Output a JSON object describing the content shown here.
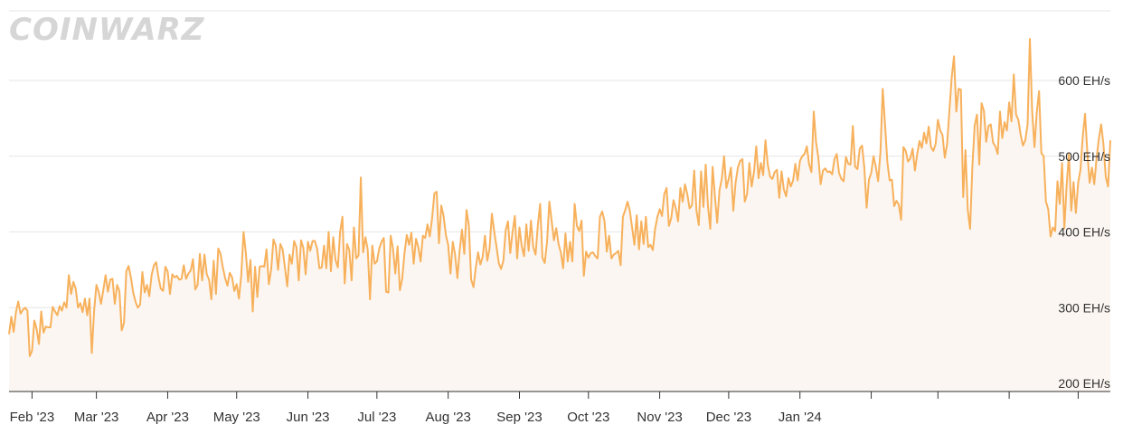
{
  "watermark": "COINWARZ",
  "chart_data": {
    "type": "area",
    "x_labels": [
      "Feb '23",
      "Mar '23",
      "Apr '23",
      "May '23",
      "Jun '23",
      "Jul '23",
      "Aug '23",
      "Sep '23",
      "Oct '23",
      "Nov '23",
      "Dec '23",
      "Jan '24"
    ],
    "y_ticks": [
      200,
      300,
      400,
      500,
      600
    ],
    "y_unit": "EH/s",
    "ylim": [
      188,
      658
    ],
    "grid": "horizontal",
    "line_color": "#f7b15c",
    "fill_color": "#fbf6f1",
    "series": [
      {
        "x_start": "2023-01-22",
        "x_step_days": 1,
        "values": [
          265,
          288,
          268,
          294,
          308,
          292,
          297,
          300,
          296,
          236,
          243,
          283,
          272,
          252,
          295,
          267,
          275,
          274,
          274,
          301,
          295,
          290,
          302,
          296,
          307,
          300,
          343,
          318,
          334,
          325,
          300,
          306,
          294,
          312,
          290,
          312,
          240,
          296,
          330,
          321,
          305,
          323,
          343,
          321,
          337,
          338,
          305,
          330,
          322,
          270,
          280,
          348,
          355,
          340,
          320,
          308,
          300,
          304,
          347,
          320,
          330,
          315,
          343,
          356,
          360,
          340,
          325,
          322,
          354,
          348,
          318,
          344,
          340,
          342,
          337,
          338,
          356,
          338,
          345,
          349,
          364,
          324,
          330,
          371,
          336,
          370,
          344,
          337,
          311,
          362,
          318,
          378,
          371,
          353,
          339,
          329,
          346,
          340,
          322,
          331,
          312,
          343,
          400,
          372,
          334,
          363,
          295,
          354,
          314,
          354,
          355,
          354,
          377,
          331,
          350,
          390,
          382,
          350,
          384,
          377,
          353,
          328,
          370,
          358,
          388,
          380,
          336,
          389,
          379,
          344,
          387,
          375,
          388,
          388,
          378,
          352,
          353,
          382,
          352,
          400,
          348,
          393,
          363,
          353,
          400,
          420,
          332,
          384,
          376,
          336,
          406,
          365,
          369,
          472,
          373,
          393,
          377,
          311,
          382,
          358,
          361,
          378,
          387,
          392,
          321,
          320,
          395,
          378,
          345,
          381,
          323,
          338,
          372,
          396,
          383,
          399,
          358,
          391,
          380,
          361,
          395,
          392,
          410,
          394,
          418,
          451,
          453,
          385,
          435,
          421,
          396,
          383,
          345,
          387,
          370,
          339,
          376,
          403,
          371,
          429,
          408,
          337,
          327,
          353,
          373,
          357,
          367,
          395,
          362,
          378,
          424,
          401,
          381,
          359,
          351,
          362,
          402,
          414,
          372,
          400,
          421,
          365,
          406,
          381,
          368,
          410,
          375,
          415,
          380,
          370,
          409,
          437,
          366,
          359,
          387,
          440,
          415,
          389,
          405,
          384,
          373,
          352,
          398,
          361,
          387,
          361,
          437,
          408,
          401,
          415,
          342,
          374,
          366,
          372,
          373,
          368,
          365,
          420,
          427,
          414,
          374,
          395,
          365,
          370,
          372,
          375,
          356,
          420,
          429,
          440,
          428,
          406,
          383,
          422,
          377,
          414,
          384,
          420,
          380,
          383,
          376,
          404,
          420,
          430,
          421,
          450,
          458,
          408,
          418,
          442,
          431,
          414,
          458,
          440,
          463,
          450,
          431,
          435,
          481,
          428,
          409,
          480,
          433,
          489,
          434,
          404,
          486,
          448,
          412,
          455,
          470,
          500,
          458,
          470,
          485,
          428,
          465,
          485,
          494,
          496,
          440,
          450,
          491,
          460,
          479,
          513,
          471,
          491,
          475,
          521,
          489,
          473,
          470,
          479,
          482,
          445,
          480,
          456,
          447,
          471,
          460,
          468,
          490,
          468,
          494,
          500,
          503,
          513,
          489,
          479,
          559,
          519,
          498,
          463,
          481,
          484,
          479,
          480,
          476,
          496,
          503,
          478,
          470,
          467,
          499,
          490,
          489,
          540,
          486,
          483,
          510,
          514,
          485,
          432,
          469,
          478,
          500,
          486,
          467,
          505,
          589,
          542,
          493,
          468,
          469,
          434,
          441,
          436,
          416,
          512,
          507,
          493,
          497,
          510,
          481,
          503,
          520,
          511,
          531,
          517,
          539,
          512,
          507,
          516,
          548,
          534,
          528,
          498,
          516,
          560,
          604,
          632,
          559,
          589,
          588,
          446,
          508,
          429,
          404,
          487,
          541,
          555,
          489,
          570,
          560,
          519,
          540,
          542,
          518,
          513,
          503,
          559,
          524,
          545,
          534,
          571,
          546,
          608,
          555,
          548,
          528,
          514,
          521,
          542,
          655,
          560,
          512,
          558,
          586,
          504,
          500,
          440,
          430,
          394,
          406,
          401,
          467,
          437,
          491,
          405,
          462,
          503,
          428,
          466,
          425,
          465,
          482,
          526,
          556,
          505,
          465,
          485,
          463,
          497,
          523,
          542,
          516,
          473,
          460,
          521
        ]
      }
    ]
  }
}
